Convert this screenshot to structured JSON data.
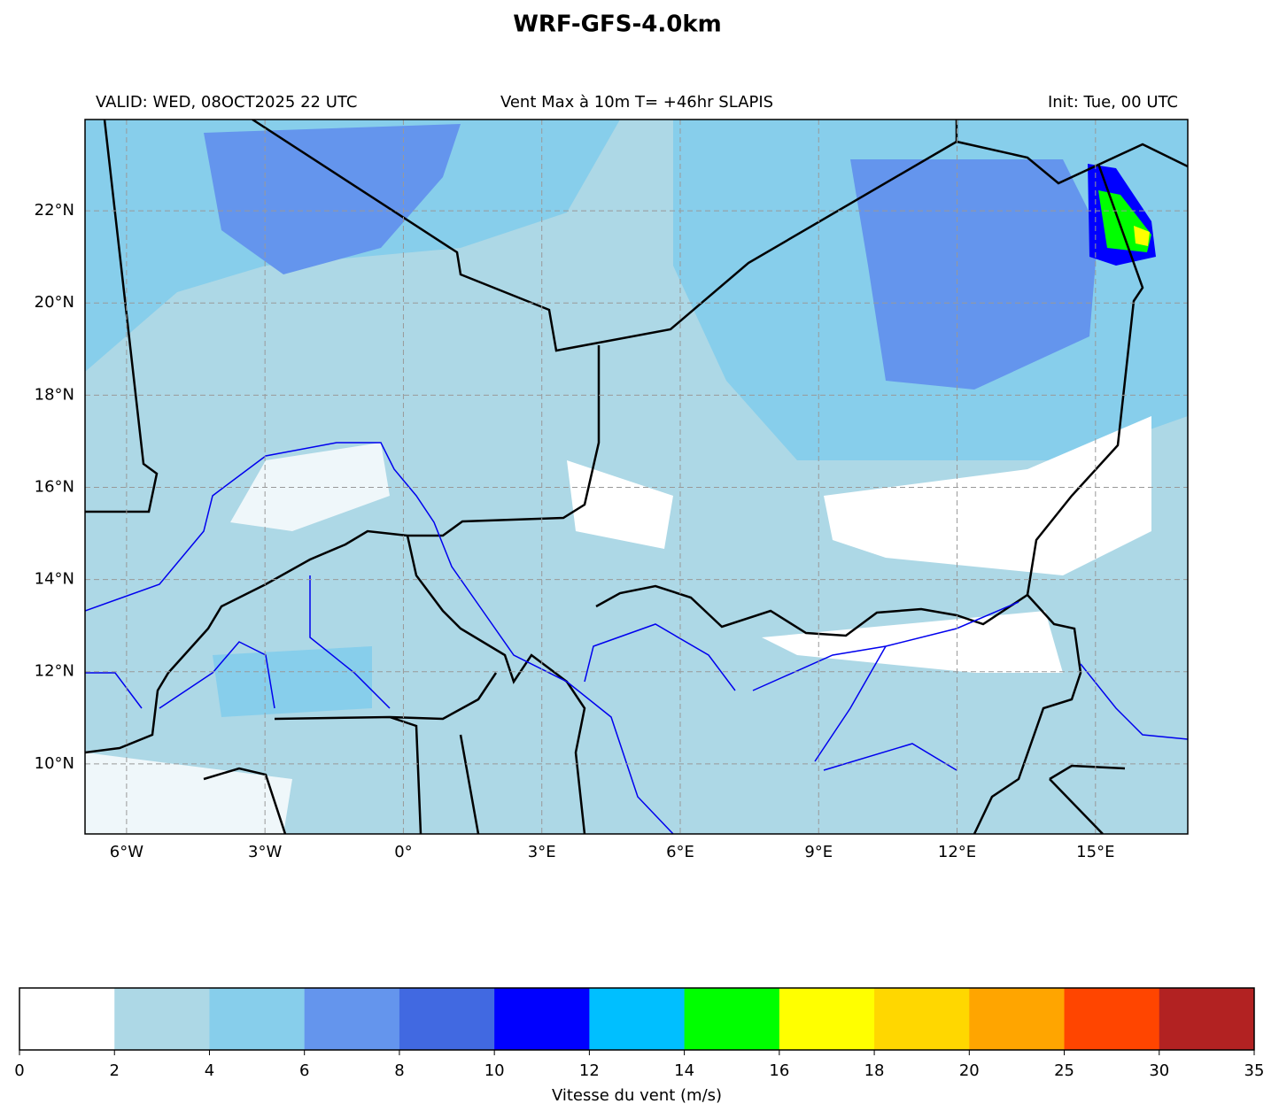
{
  "header": {
    "title": "WRF-GFS-4.0km",
    "valid": "VALID: WED, 08OCT2025 22 UTC",
    "subtitle": "Vent Max à 10m T= +46hr SLAPIS",
    "init": "Init: Tue, 00 UTC"
  },
  "map": {
    "xlim": [
      -6.9,
      17.0
    ],
    "ylim": [
      8.48,
      23.98
    ],
    "grid": true,
    "xticks": [
      {
        "value": -6,
        "label": "6°W"
      },
      {
        "value": -3,
        "label": "3°W"
      },
      {
        "value": 0,
        "label": "0°"
      },
      {
        "value": 3,
        "label": "3°E"
      },
      {
        "value": 6,
        "label": "6°E"
      },
      {
        "value": 9,
        "label": "9°E"
      },
      {
        "value": 12,
        "label": "12°E"
      },
      {
        "value": 15,
        "label": "15°E"
      }
    ],
    "yticks": [
      {
        "value": 10,
        "label": "10°N"
      },
      {
        "value": 12,
        "label": "12°N"
      },
      {
        "value": 14,
        "label": "14°N"
      },
      {
        "value": 16,
        "label": "16°N"
      },
      {
        "value": 18,
        "label": "18°N"
      },
      {
        "value": 20,
        "label": "20°N"
      },
      {
        "value": 22,
        "label": "22°N"
      }
    ]
  },
  "colorbar": {
    "label": "Vitesse du vent (m/s)",
    "boundaries": [
      0,
      2,
      4,
      6,
      8,
      10,
      12,
      14,
      16,
      18,
      20,
      25,
      30,
      35
    ],
    "colors": [
      "#ffffff",
      "#add8e6",
      "#87ceeb",
      "#6495ed",
      "#4169e1",
      "#0000ff",
      "#00bfff",
      "#00ff00",
      "#ffff00",
      "#ffd700",
      "#ffa500",
      "#ff4500",
      "#b22222"
    ]
  }
}
